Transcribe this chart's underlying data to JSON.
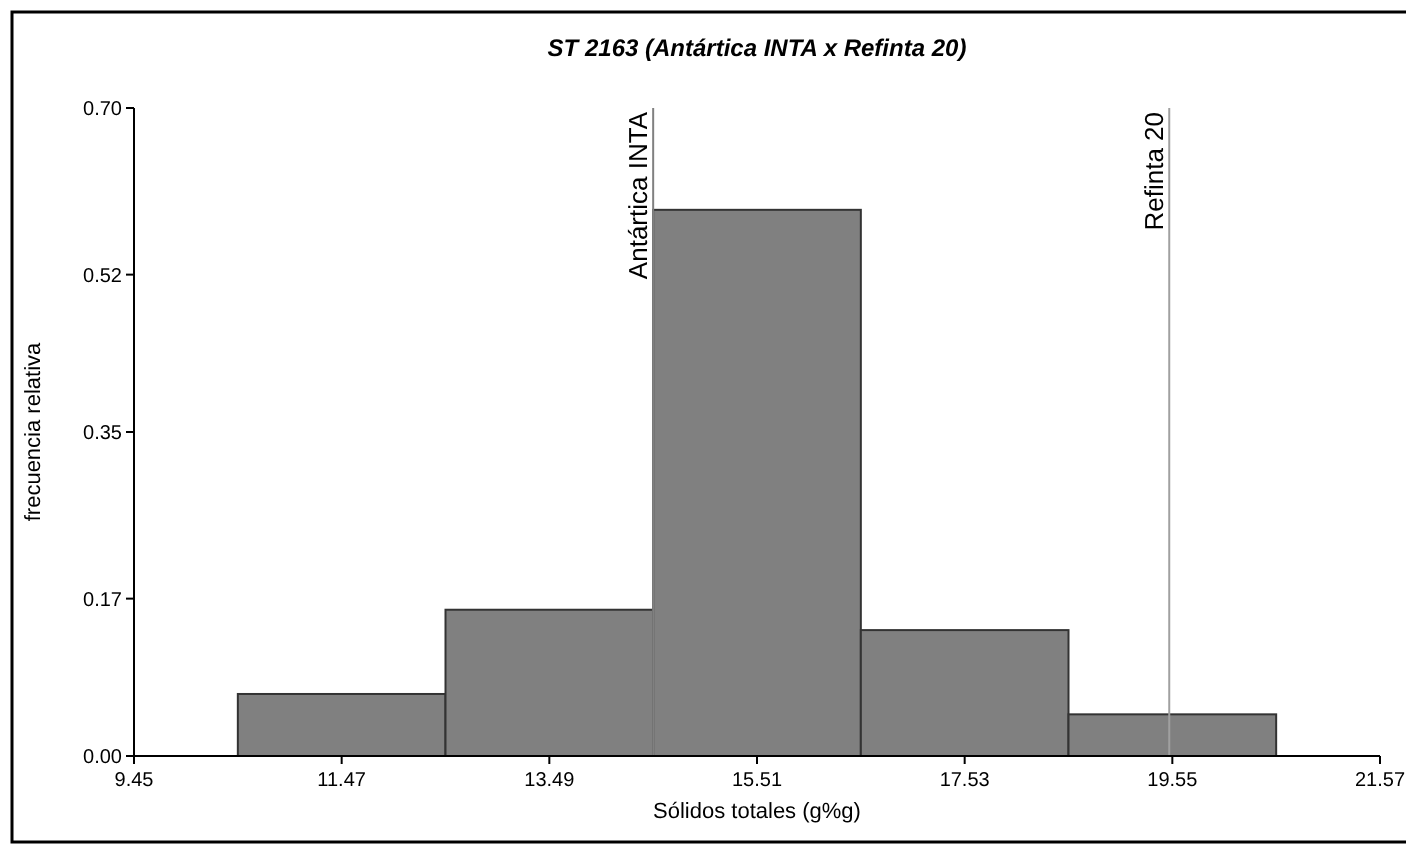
{
  "chart_data": {
    "type": "histogram",
    "title": "ST 2163 (Antártica INTA x Refinta 20)",
    "xlabel": "Sólidos totales (g%g)",
    "ylabel": "frecuencia relativa",
    "bins": [
      10.46,
      12.48,
      14.5,
      16.52,
      18.54,
      20.56
    ],
    "values": [
      0.067,
      0.158,
      0.59,
      0.136,
      0.045
    ],
    "color": "#808080",
    "xlim": [
      9.45,
      21.57
    ],
    "xticks": [
      9.45,
      11.47,
      13.49,
      15.51,
      17.53,
      19.55,
      21.57
    ],
    "ylim": [
      0,
      0.7
    ],
    "yticks": [
      {
        "value": 0,
        "label": "0.00"
      },
      0.17,
      0.35,
      0.52,
      {
        "value": 0.7,
        "label": "0.70"
      }
    ],
    "ref_lines": [
      {
        "axis": "x",
        "value": 14.5,
        "label": "Antártica INTA",
        "color": "#808080"
      },
      {
        "axis": "x",
        "value": 19.52,
        "label": "Refinta 20",
        "color": "#a0a0a0"
      }
    ],
    "grid": false
  }
}
